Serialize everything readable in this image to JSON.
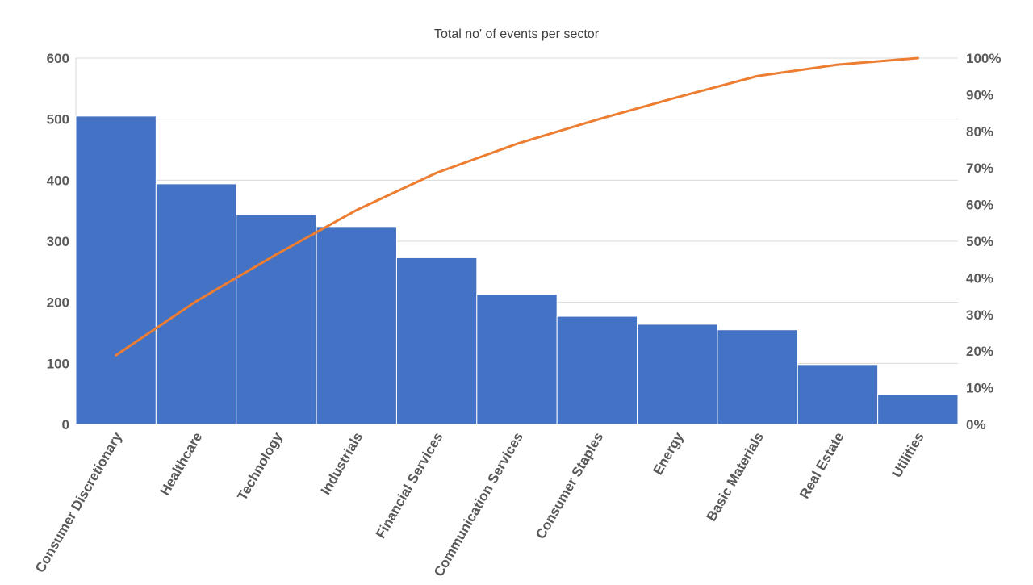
{
  "chart_data": {
    "type": "bar",
    "title": "Total no' of events per sector",
    "categories": [
      "Consumer Discretionary",
      "Healthcare",
      "Technology",
      "Industrials",
      "Financial Services",
      "Communication Services",
      "Consumer Staples",
      "Energy",
      "Basic Materials",
      "Real Estate",
      "Utilities"
    ],
    "series": [
      {
        "type": "bar",
        "axis": "left",
        "color": "#4472C4",
        "values": [
          505,
          394,
          343,
          324,
          273,
          213,
          177,
          164,
          155,
          98,
          49
        ]
      },
      {
        "type": "line",
        "axis": "right",
        "color": "#ED7D31",
        "values": [
          18.9,
          33.6,
          46.4,
          58.5,
          68.7,
          76.6,
          83.2,
          89.3,
          95.1,
          98.2,
          100
        ]
      }
    ],
    "y_left": {
      "min": 0,
      "max": 600,
      "ticks": [
        "0",
        "100",
        "200",
        "300",
        "400",
        "500",
        "600"
      ]
    },
    "y_right": {
      "min": 0,
      "max": 100,
      "ticks": [
        "0%",
        "10%",
        "20%",
        "30%",
        "40%",
        "50%",
        "60%",
        "70%",
        "80%",
        "90%",
        "100%"
      ]
    },
    "grid": true,
    "legend": "none",
    "colors": {
      "bar": "#4472C4",
      "line": "#ED7D31",
      "grid": "#D9D9D9",
      "text": "#595959"
    }
  }
}
